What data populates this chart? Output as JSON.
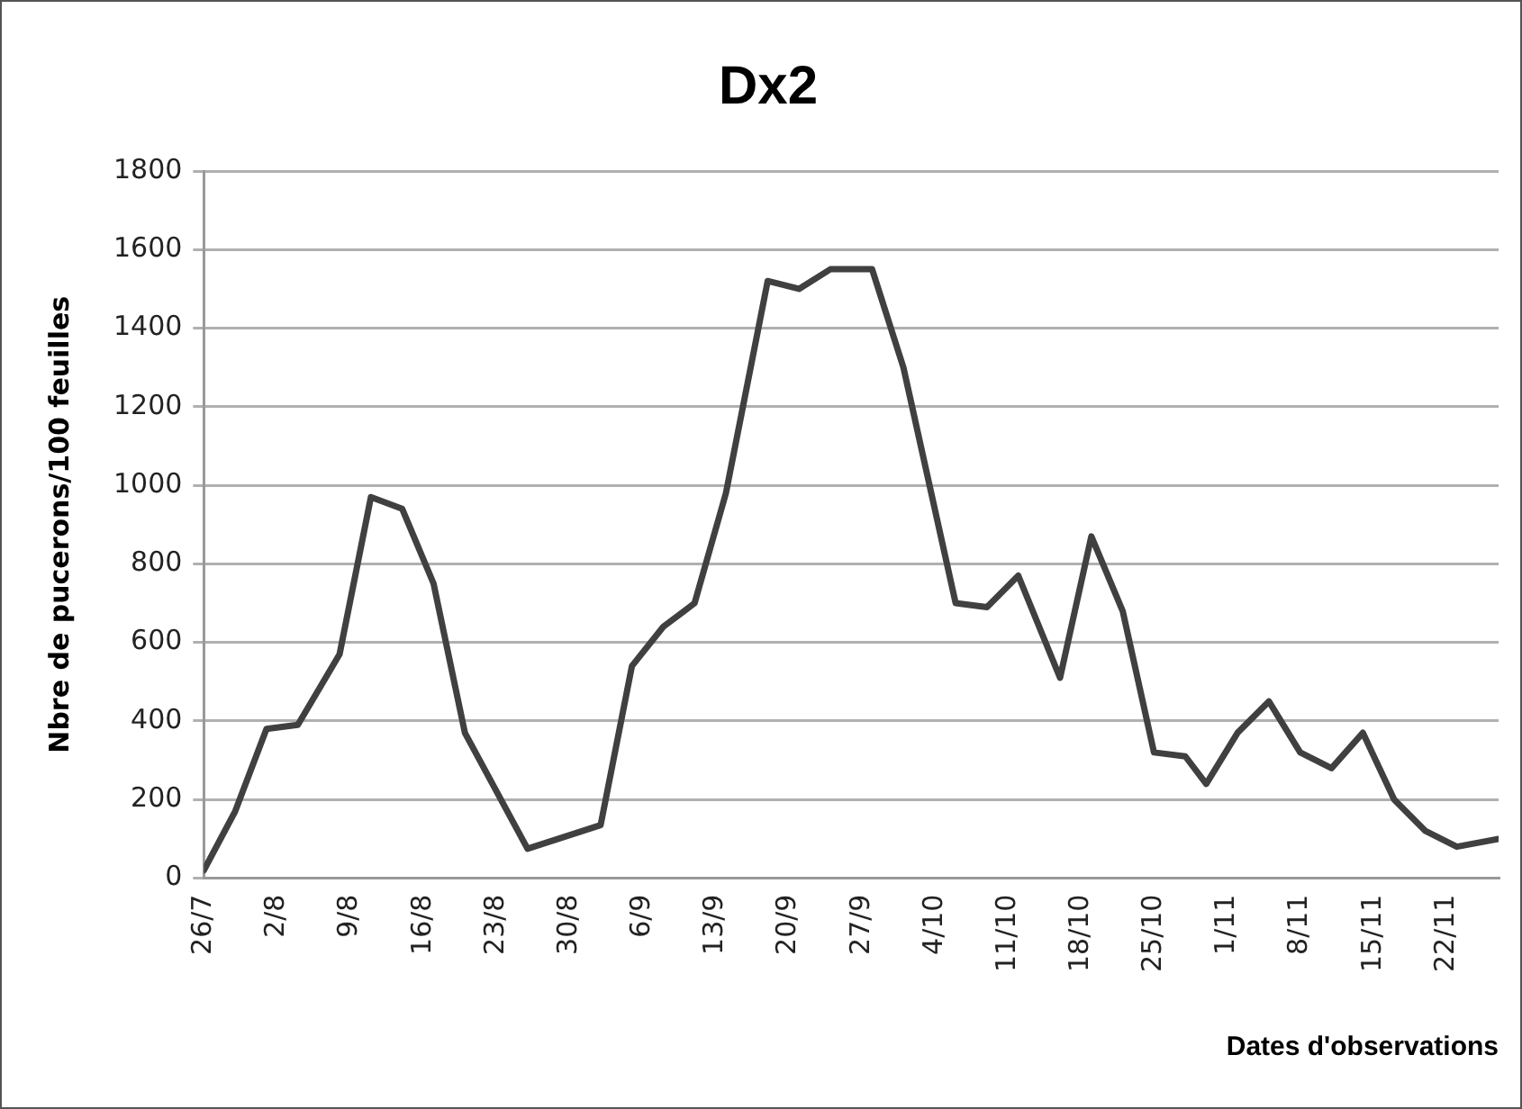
{
  "chart_data": {
    "type": "line",
    "title": "Dx2",
    "xlabel": "Dates d'observations",
    "ylabel": "Nbre de pucerons/100 feuilles",
    "x": [
      "--07-26",
      "--07-29",
      "--08-01",
      "--08-04",
      "--08-08",
      "--08-11",
      "--08-14",
      "--08-17",
      "--08-20",
      "--08-26",
      "--09-02",
      "--09-05",
      "--09-08",
      "--09-11",
      "--09-14",
      "--09-18",
      "--09-21",
      "--09-24",
      "--09-28",
      "--10-01",
      "--10-06",
      "--10-09",
      "--10-12",
      "--10-16",
      "--10-19",
      "--10-22",
      "--10-25",
      "--10-28",
      "--10-30",
      "--11-02",
      "--11-05",
      "--11-08",
      "--11-11",
      "--11-14",
      "--11-17",
      "--11-20",
      "--11-23",
      "--11-27"
    ],
    "series": [
      {
        "color": "#404040",
        "values": [
          20,
          170,
          380,
          390,
          570,
          970,
          940,
          750,
          370,
          75,
          135,
          540,
          640,
          700,
          980,
          1520,
          1500,
          1550,
          1550,
          1300,
          700,
          690,
          770,
          510,
          870,
          680,
          320,
          310,
          240,
          370,
          450,
          320,
          280,
          370,
          200,
          120,
          80,
          100
        ]
      }
    ],
    "xlim": [
      "--07-26",
      "--11-27"
    ],
    "xticks": [
      {
        "value": "--07-26",
        "label": "26/7"
      },
      {
        "value": "--08-02",
        "label": "2/8"
      },
      {
        "value": "--08-09",
        "label": "9/8"
      },
      {
        "value": "--08-16",
        "label": "16/8"
      },
      {
        "value": "--08-23",
        "label": "23/8"
      },
      {
        "value": "--08-30",
        "label": "30/8"
      },
      {
        "value": "--09-06",
        "label": "6/9"
      },
      {
        "value": "--09-13",
        "label": "13/9"
      },
      {
        "value": "--09-20",
        "label": "20/9"
      },
      {
        "value": "--09-27",
        "label": "27/9"
      },
      {
        "value": "--10-04",
        "label": "4/10"
      },
      {
        "value": "--10-11",
        "label": "11/10"
      },
      {
        "value": "--10-18",
        "label": "18/10"
      },
      {
        "value": "--10-25",
        "label": "25/10"
      },
      {
        "value": "--11-01",
        "label": "1/11"
      },
      {
        "value": "--11-08",
        "label": "8/11"
      },
      {
        "value": "--11-15",
        "label": "15/11"
      },
      {
        "value": "--11-22",
        "label": "22/11"
      }
    ],
    "ylim": [
      0,
      1800
    ],
    "yticks": [
      0,
      200,
      400,
      600,
      800,
      1000,
      1200,
      1400,
      1600,
      1800
    ],
    "grid": "y",
    "legend": false,
    "marker": "none",
    "line_style": "solid"
  }
}
